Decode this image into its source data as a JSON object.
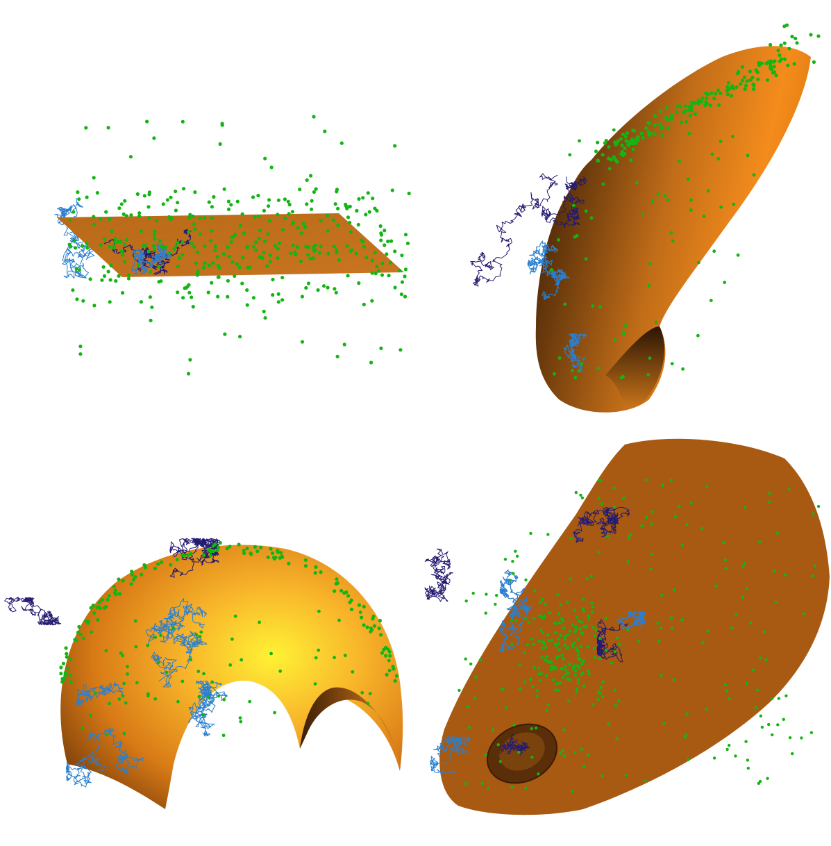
{
  "figure": {
    "background": "#ffffff",
    "colors": {
      "surface_light": "#ffe033",
      "surface_mid": "#f59a20",
      "surface_dark": "#a85a14",
      "surface_shadow": "#3a1d05",
      "surface_flat": "#c06e1a",
      "walk_light": "#2a7fd0",
      "walk_dark": "#241a70",
      "points": "#13b513"
    },
    "panels": [
      {
        "name": "plane-panel",
        "surface": "plane"
      },
      {
        "name": "cylinder-panel",
        "surface": "curved-sheet"
      },
      {
        "name": "sphere-panel",
        "surface": "sphere-cap"
      },
      {
        "name": "ellipsoid-panel",
        "surface": "elongated-cap"
      }
    ]
  }
}
